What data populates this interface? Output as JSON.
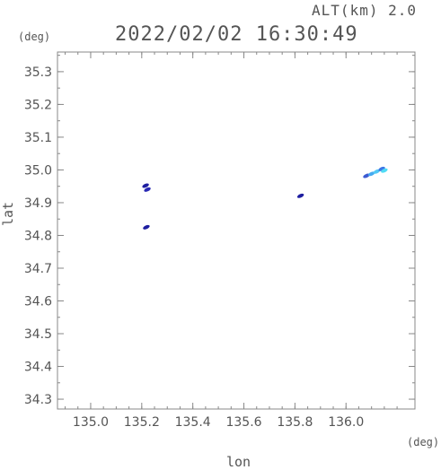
{
  "header": {
    "altitude_label": "ALT(km) 2.0",
    "datetime": "2022/02/02 16:30:49"
  },
  "chart_data": {
    "type": "heatmap",
    "xlabel": "lon",
    "ylabel": "lat",
    "x_unit": "(deg)",
    "y_unit": "(deg)",
    "xlim": [
      134.87,
      136.27
    ],
    "ylim": [
      34.27,
      35.36
    ],
    "x_ticks": [
      "135.0",
      "135.2",
      "135.4",
      "135.6",
      "135.8",
      "136.0"
    ],
    "x_tick_values": [
      135.0,
      135.2,
      135.4,
      135.6,
      135.8,
      136.0
    ],
    "y_ticks": [
      "34.3",
      "34.4",
      "34.5",
      "34.6",
      "34.7",
      "34.8",
      "34.9",
      "35.0",
      "35.1",
      "35.2",
      "35.3"
    ],
    "y_tick_values": [
      34.3,
      34.4,
      34.5,
      34.6,
      34.7,
      34.8,
      34.9,
      35.0,
      35.1,
      35.2,
      35.3
    ],
    "grid": false,
    "echoes": [
      {
        "lon": 135.215,
        "lat": 34.952,
        "color": "#1e1ea0"
      },
      {
        "lon": 135.222,
        "lat": 34.94,
        "color": "#2a2ab4"
      },
      {
        "lon": 135.218,
        "lat": 34.825,
        "color": "#1e1ea0"
      },
      {
        "lon": 135.822,
        "lat": 34.921,
        "color": "#1e1ea0"
      },
      {
        "lon": 136.08,
        "lat": 34.982,
        "color": "#3c5ad2"
      },
      {
        "lon": 136.1,
        "lat": 34.988,
        "color": "#46aaf0"
      },
      {
        "lon": 136.12,
        "lat": 34.995,
        "color": "#50c8f5"
      },
      {
        "lon": 136.14,
        "lat": 35.003,
        "color": "#3c78e6"
      },
      {
        "lon": 136.15,
        "lat": 34.998,
        "color": "#50dcf5"
      }
    ]
  }
}
